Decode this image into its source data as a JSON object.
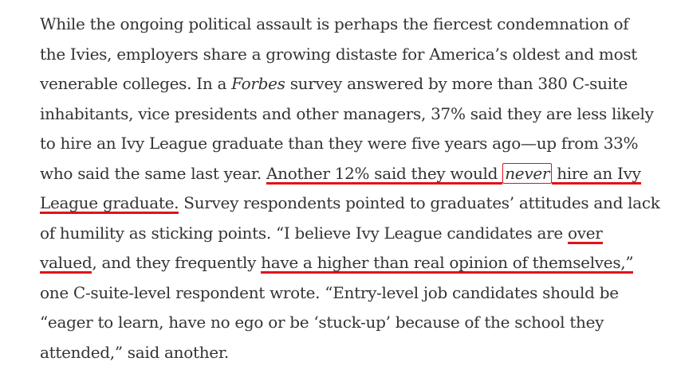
{
  "article": {
    "lines": [
      {
        "segments": [
          {
            "text": "While the ongoing political assault is perhaps the fiercest condemnation of"
          }
        ]
      },
      {
        "segments": [
          {
            "text": "the Ivies, employers share a growing distaste for America’s oldest and most"
          }
        ]
      },
      {
        "segments": [
          {
            "text": "venerable colleges. In a "
          },
          {
            "text": "Forbes",
            "style": "italic"
          },
          {
            "text": " survey answered by more than 380 C-suite"
          }
        ]
      },
      {
        "segments": [
          {
            "text": "inhabitants, vice presidents and other managers, 37% said they are less likely"
          }
        ]
      },
      {
        "segments": [
          {
            "text": "to hire an Ivy League graduate than they were five years ago—up from 33%"
          }
        ]
      },
      {
        "segments": [
          {
            "text": "who said the same last year. "
          },
          {
            "text": "Another 12% said they would ",
            "style": "underline"
          },
          {
            "text": "never",
            "style": "boxed"
          },
          {
            "text": " hire an Ivy",
            "style": "underline"
          }
        ]
      },
      {
        "segments": [
          {
            "text": "League graduate.",
            "style": "underline"
          },
          {
            "text": " Survey respondents pointed to graduates’ attitudes and lack"
          }
        ]
      },
      {
        "segments": [
          {
            "text": "of humility as sticking points. “I believe Ivy League candidates are "
          },
          {
            "text": "over",
            "style": "underline"
          }
        ]
      },
      {
        "segments": [
          {
            "text": "valued",
            "style": "underline"
          },
          {
            "text": ", and they frequently "
          },
          {
            "text": "have a higher than real opinion of themselves,”",
            "style": "underline"
          }
        ]
      },
      {
        "segments": [
          {
            "text": "one C-suite-level respondent wrote. “Entry-level job candidates should be"
          }
        ]
      },
      {
        "segments": [
          {
            "text": "“eager to learn, have no ego or be ‘stuck-up’ because of the school they"
          }
        ]
      },
      {
        "segments": [
          {
            "text": "attended,” said another."
          }
        ]
      }
    ],
    "highlight_color": "#e0121b",
    "text_color": "#333333"
  }
}
